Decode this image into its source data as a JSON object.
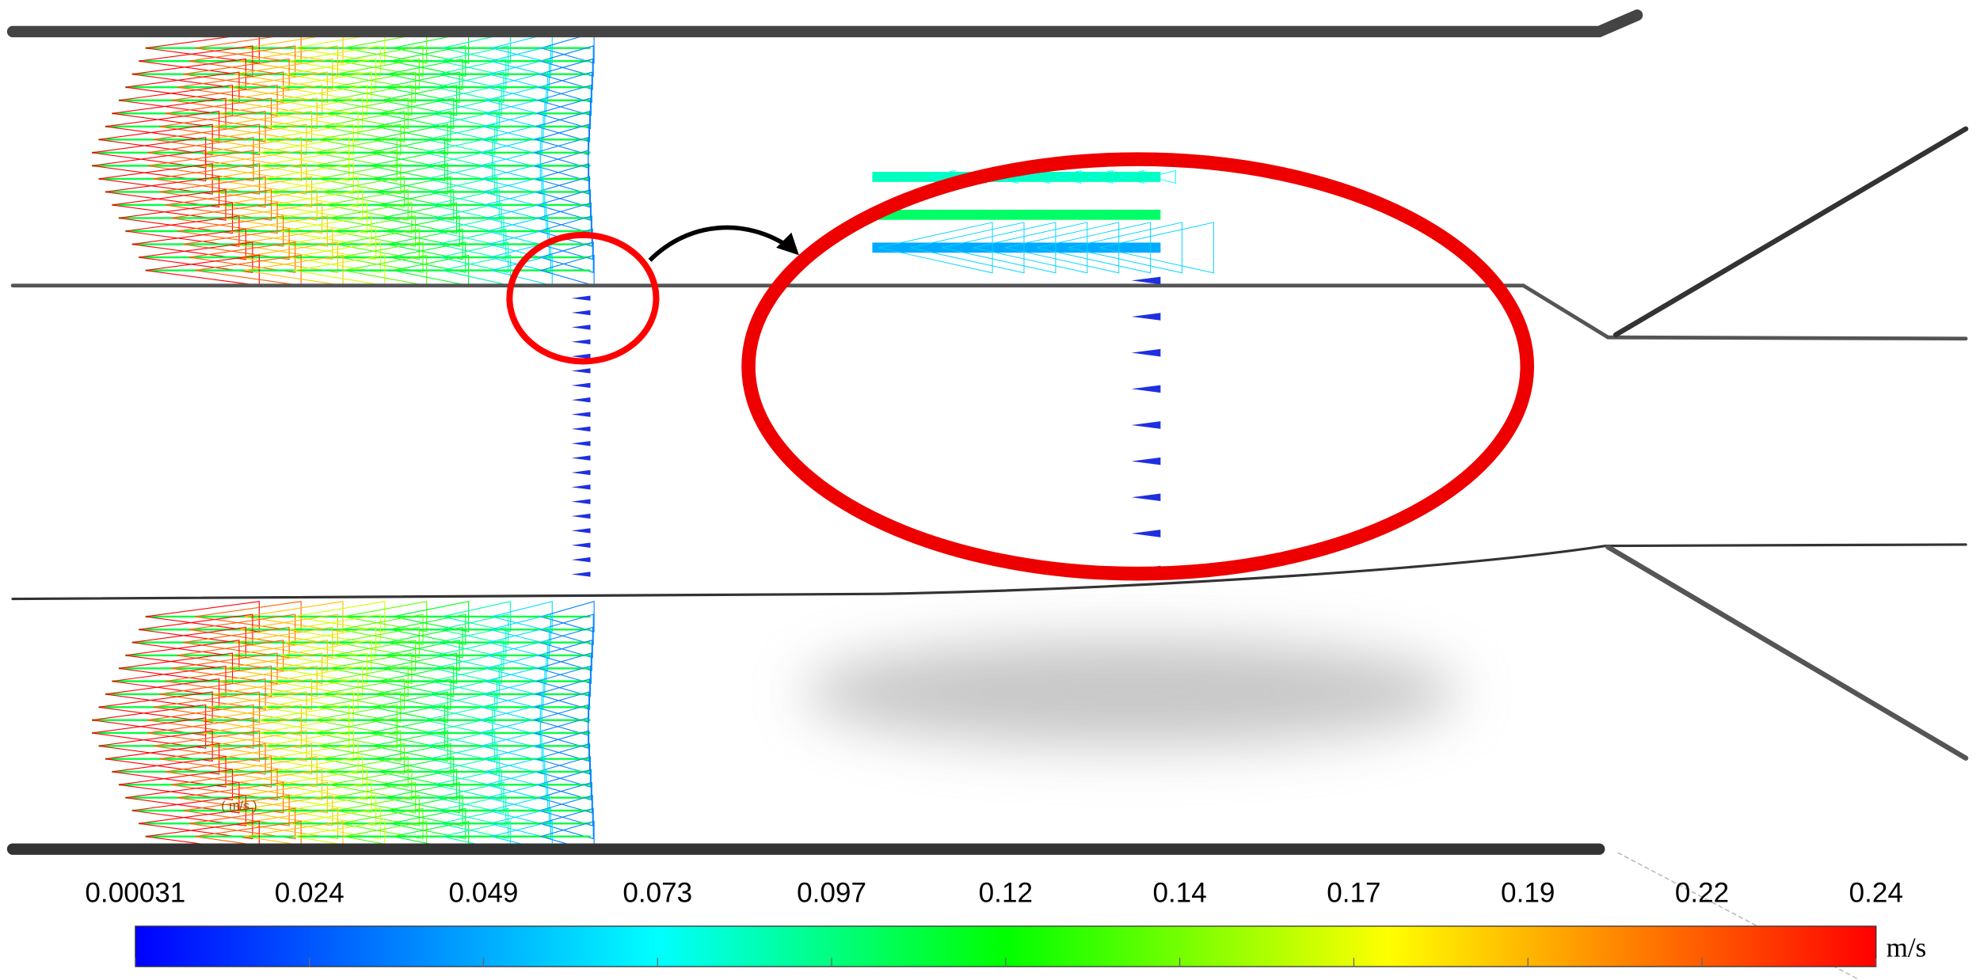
{
  "colorbar": {
    "ticks": [
      "0.00031",
      "0.024",
      "0.049",
      "0.073",
      "0.097",
      "0.12",
      "0.14",
      "0.17",
      "0.19",
      "0.22",
      "0.24"
    ],
    "unit": "m/s"
  },
  "faint_label": "( m/s )"
}
